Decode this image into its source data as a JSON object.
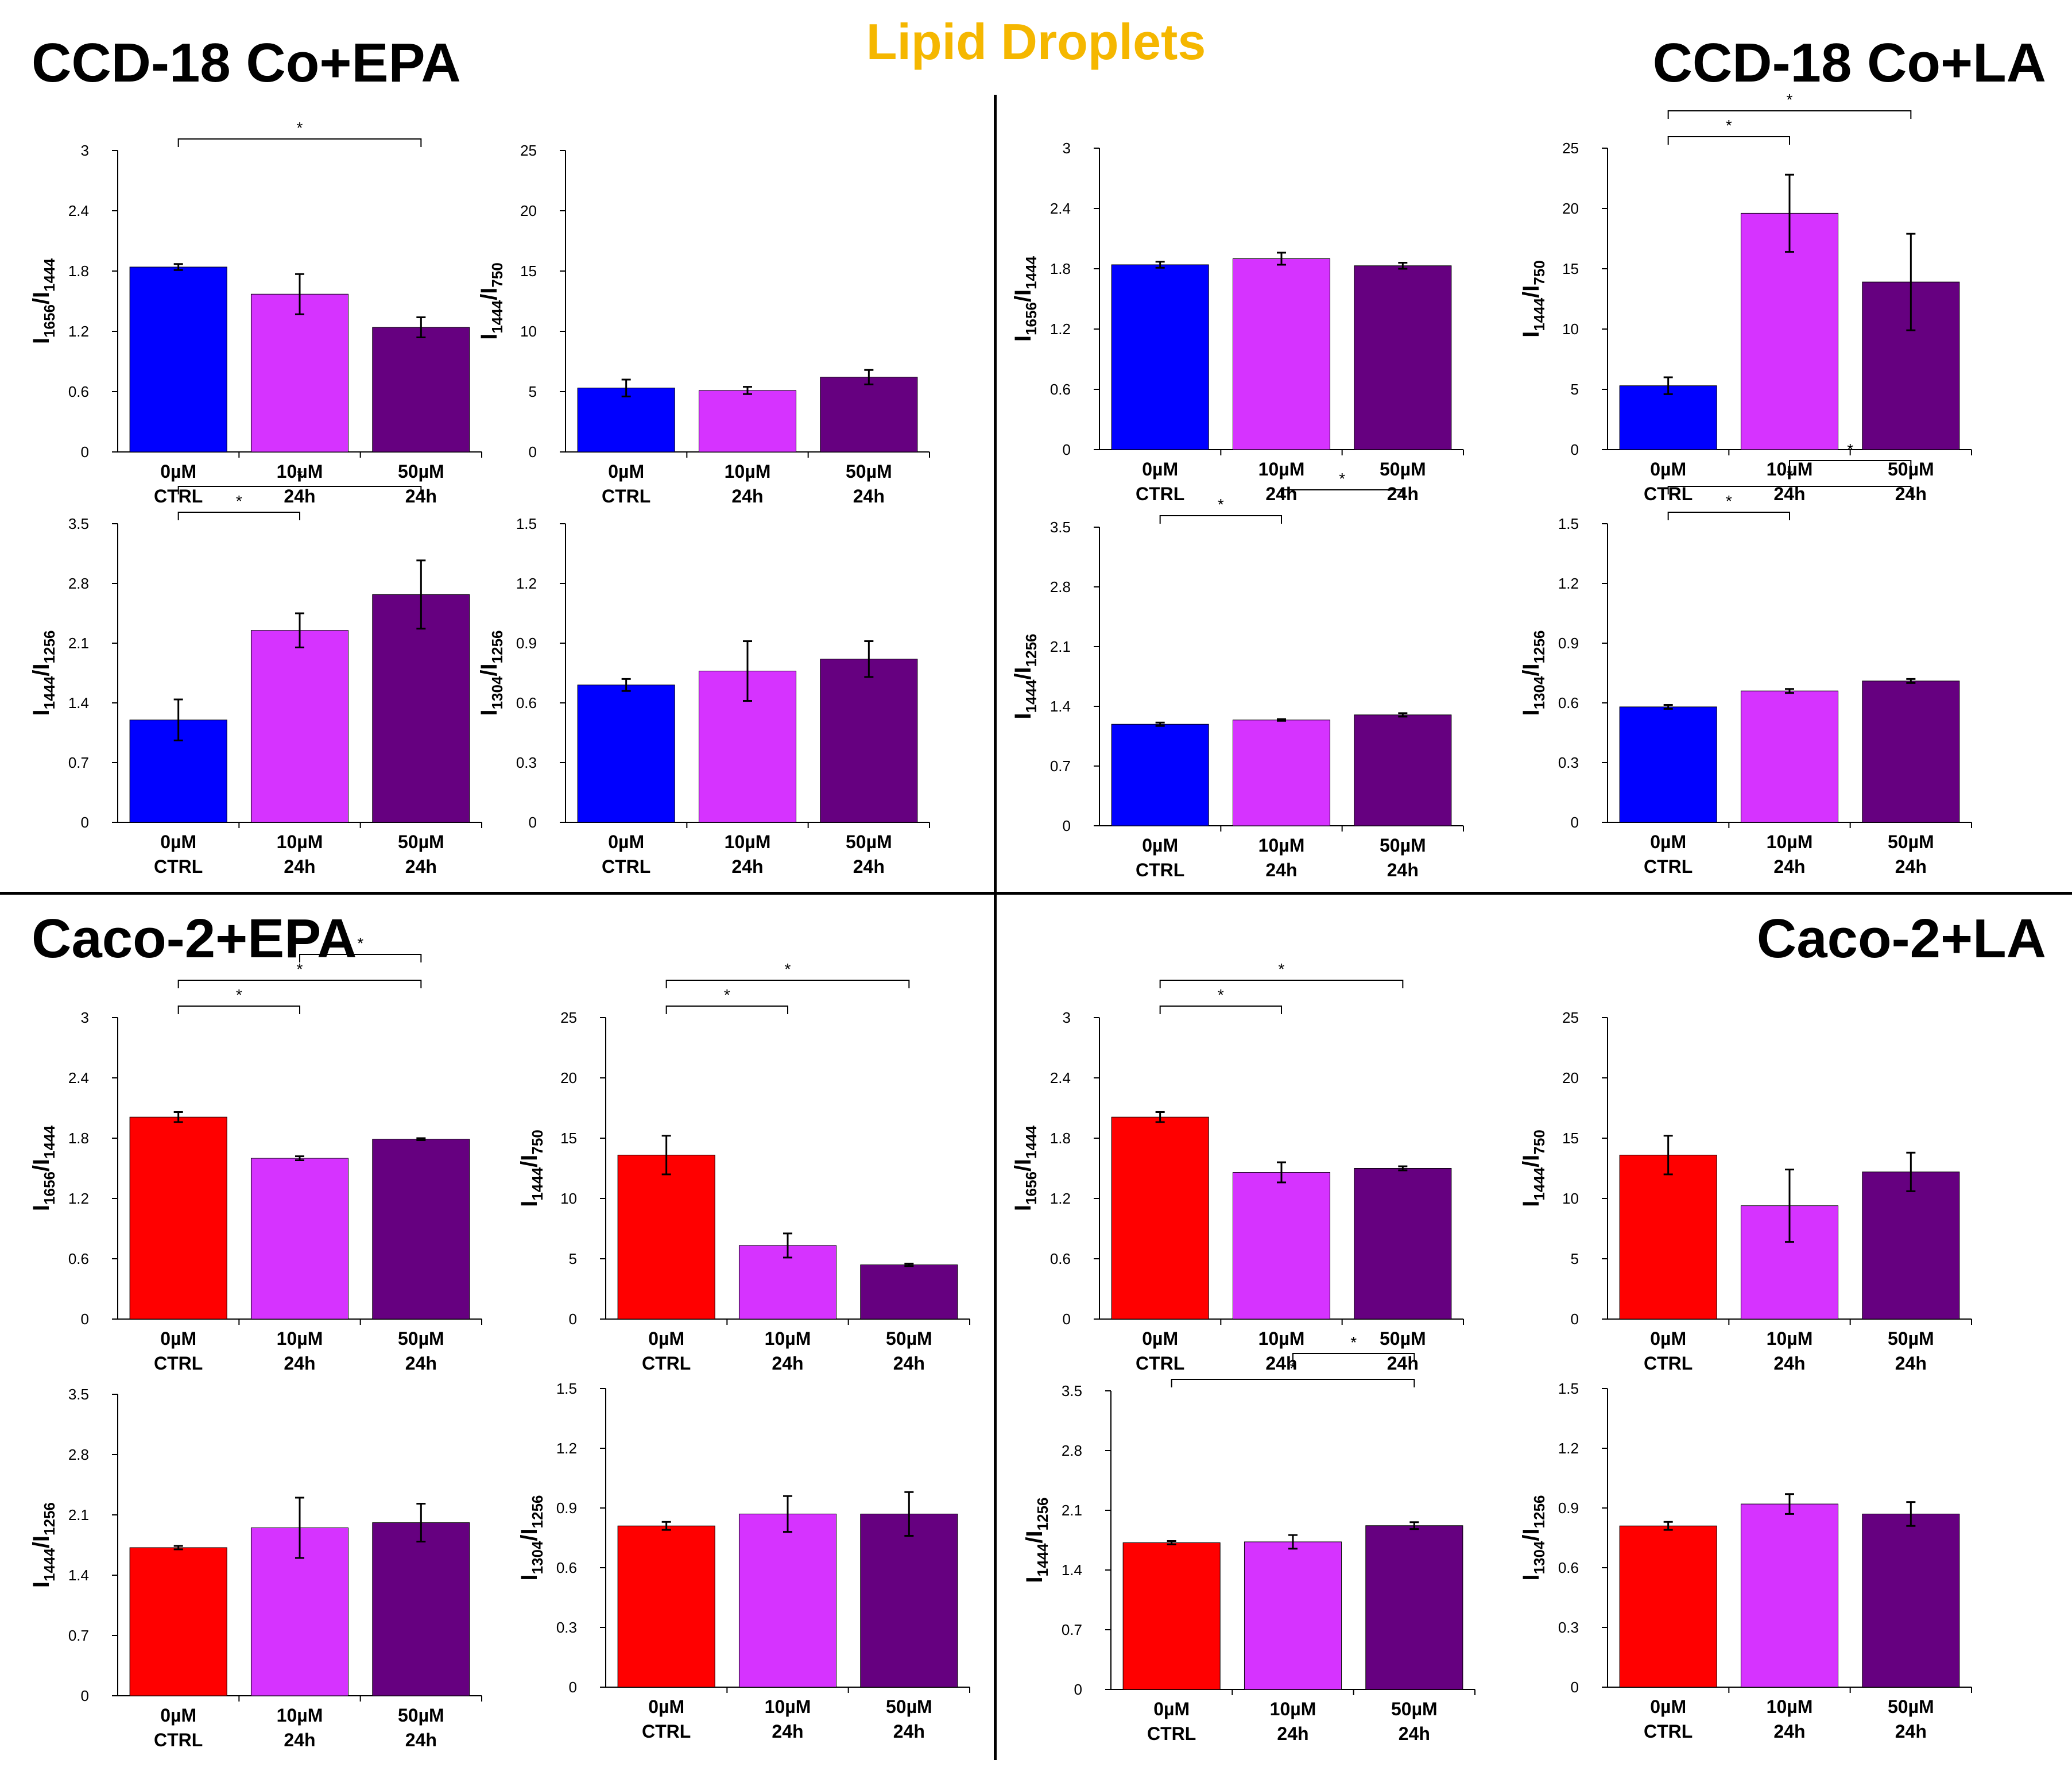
{
  "title": "Lipid Droplets",
  "panels": [
    {
      "title": "CCD-18 Co+EPA"
    },
    {
      "title": "CCD-18 Co+LA"
    },
    {
      "title": "Caco-2+EPA"
    },
    {
      "title": "Caco-2+LA"
    }
  ],
  "colors": {
    "ccd_ctrl": "#0000ff",
    "caco_ctrl": "#ff0000",
    "dose10": "#d633ff",
    "dose50": "#660080",
    "title": "#f5b700"
  },
  "chart_data": [
    {
      "id": "ccd-epa-1656-1444",
      "panel": 0,
      "type": "bar",
      "ylabel": {
        "main": "I",
        "sub1": "1656",
        "mid": "/I",
        "sub2": "1444"
      },
      "ylim": [
        0,
        3
      ],
      "yticks": [
        "0",
        "0.6",
        "1.2",
        "1.8",
        "2.4",
        "3"
      ],
      "categories": [
        [
          "0µM",
          "CTRL"
        ],
        [
          "10µM",
          "24h"
        ],
        [
          "50µM",
          "24h"
        ]
      ],
      "values": [
        1.84,
        1.57,
        1.24
      ],
      "errors": [
        0.03,
        0.2,
        0.1
      ],
      "sig": [
        {
          "from": 0,
          "to": 2,
          "label": "*"
        }
      ]
    },
    {
      "id": "ccd-epa-1444-750",
      "panel": 0,
      "type": "bar",
      "ylabel": {
        "main": "I",
        "sub1": "1444",
        "mid": "/I",
        "sub2": "750"
      },
      "ylim": [
        0,
        25
      ],
      "yticks": [
        "0",
        "5",
        "10",
        "15",
        "20",
        "25"
      ],
      "categories": [
        [
          "0µM",
          "CTRL"
        ],
        [
          "10µM",
          "24h"
        ],
        [
          "50µM",
          "24h"
        ]
      ],
      "values": [
        5.3,
        5.1,
        6.2
      ],
      "errors": [
        0.7,
        0.3,
        0.6
      ],
      "sig": []
    },
    {
      "id": "ccd-epa-1444-1256",
      "panel": 0,
      "type": "bar",
      "ylabel": {
        "main": "I",
        "sub1": "1444",
        "mid": "/I",
        "sub2": "1256"
      },
      "ylim": [
        0,
        3.5
      ],
      "yticks": [
        "0",
        "0.7",
        "1.4",
        "2.1",
        "2.8",
        "3.5"
      ],
      "categories": [
        [
          "0µM",
          "CTRL"
        ],
        [
          "10µM",
          "24h"
        ],
        [
          "50µM",
          "24h"
        ]
      ],
      "values": [
        1.2,
        2.25,
        2.67
      ],
      "errors": [
        0.24,
        0.2,
        0.4
      ],
      "sig": [
        {
          "from": 0,
          "to": 1,
          "label": "*"
        },
        {
          "from": 0,
          "to": 2,
          "label": "*"
        }
      ]
    },
    {
      "id": "ccd-epa-1304-1256",
      "panel": 0,
      "type": "bar",
      "ylabel": {
        "main": "I",
        "sub1": "1304",
        "mid": "/I",
        "sub2": "1256"
      },
      "ylim": [
        0,
        1.5
      ],
      "yticks": [
        "0",
        "0.3",
        "0.6",
        "0.9",
        "1.2",
        "1.5"
      ],
      "categories": [
        [
          "0µM",
          "CTRL"
        ],
        [
          "10µM",
          "24h"
        ],
        [
          "50µM",
          "24h"
        ]
      ],
      "values": [
        0.69,
        0.76,
        0.82
      ],
      "errors": [
        0.03,
        0.15,
        0.09
      ],
      "sig": []
    },
    {
      "id": "ccd-la-1656-1444",
      "panel": 1,
      "type": "bar",
      "ylabel": {
        "main": "I",
        "sub1": "1656",
        "mid": "/I",
        "sub2": "1444"
      },
      "ylim": [
        0,
        3
      ],
      "yticks": [
        "0",
        "0.6",
        "1.2",
        "1.8",
        "2.4",
        "3"
      ],
      "categories": [
        [
          "0µM",
          "CTRL"
        ],
        [
          "10µM",
          "24h"
        ],
        [
          "50µM",
          "24h"
        ]
      ],
      "values": [
        1.84,
        1.9,
        1.83
      ],
      "errors": [
        0.03,
        0.06,
        0.03
      ],
      "sig": []
    },
    {
      "id": "ccd-la-1444-750",
      "panel": 1,
      "type": "bar",
      "ylabel": {
        "main": "I",
        "sub1": "1444",
        "mid": "/I",
        "sub2": "750"
      },
      "ylim": [
        0,
        25
      ],
      "yticks": [
        "0",
        "5",
        "10",
        "15",
        "20",
        "25"
      ],
      "categories": [
        [
          "0µM",
          "CTRL"
        ],
        [
          "10µM",
          "24h"
        ],
        [
          "50µM",
          "24h"
        ]
      ],
      "values": [
        5.3,
        19.6,
        13.9
      ],
      "errors": [
        0.7,
        3.2,
        4.0
      ],
      "sig": [
        {
          "from": 0,
          "to": 1,
          "label": "*"
        },
        {
          "from": 0,
          "to": 2,
          "label": "*"
        }
      ]
    },
    {
      "id": "ccd-la-1444-1256",
      "panel": 1,
      "type": "bar",
      "ylabel": {
        "main": "I",
        "sub1": "1444",
        "mid": "/I",
        "sub2": "1256"
      },
      "ylim": [
        0,
        3.5
      ],
      "yticks": [
        "0",
        "0.7",
        "1.4",
        "2.1",
        "2.8",
        "3.5"
      ],
      "categories": [
        [
          "0µM",
          "CTRL"
        ],
        [
          "10µM",
          "24h"
        ],
        [
          "50µM",
          "24h"
        ]
      ],
      "values": [
        1.19,
        1.24,
        1.3
      ],
      "errors": [
        0.02,
        0.01,
        0.02
      ],
      "sig": [
        {
          "from": 0,
          "to": 1,
          "label": "*"
        },
        {
          "from": 1,
          "to": 2,
          "label": "*"
        }
      ]
    },
    {
      "id": "ccd-la-1304-1256",
      "panel": 1,
      "type": "bar",
      "ylabel": {
        "main": "I",
        "sub1": "1304",
        "mid": "/I",
        "sub2": "1256"
      },
      "ylim": [
        0,
        1.5
      ],
      "yticks": [
        "0",
        "0.3",
        "0.6",
        "0.9",
        "1.2",
        "1.5"
      ],
      "categories": [
        [
          "0µM",
          "CTRL"
        ],
        [
          "10µM",
          "24h"
        ],
        [
          "50µM",
          "24h"
        ]
      ],
      "values": [
        0.58,
        0.66,
        0.71
      ],
      "errors": [
        0.01,
        0.01,
        0.01
      ],
      "sig": [
        {
          "from": 0,
          "to": 1,
          "label": "*"
        },
        {
          "from": 0,
          "to": 2,
          "label": "*"
        },
        {
          "from": 1,
          "to": 2,
          "label": "*"
        }
      ]
    },
    {
      "id": "caco-epa-1656-1444",
      "panel": 2,
      "type": "bar",
      "ylabel": {
        "main": "I",
        "sub1": "1656",
        "mid": "/I",
        "sub2": "1444"
      },
      "ylim": [
        0,
        3
      ],
      "yticks": [
        "0",
        "0.6",
        "1.2",
        "1.8",
        "2.4",
        "3"
      ],
      "categories": [
        [
          "0µM",
          "CTRL"
        ],
        [
          "10µM",
          "24h"
        ],
        [
          "50µM",
          "24h"
        ]
      ],
      "values": [
        2.01,
        1.6,
        1.79
      ],
      "errors": [
        0.05,
        0.02,
        0.01
      ],
      "sig": [
        {
          "from": 0,
          "to": 1,
          "label": "*"
        },
        {
          "from": 0,
          "to": 2,
          "label": "*"
        },
        {
          "from": 1,
          "to": 2,
          "label": "*"
        }
      ]
    },
    {
      "id": "caco-epa-1444-750",
      "panel": 2,
      "type": "bar",
      "ylabel": {
        "main": "I",
        "sub1": "1444",
        "mid": "/I",
        "sub2": "750"
      },
      "ylim": [
        0,
        25
      ],
      "yticks": [
        "0",
        "5",
        "10",
        "15",
        "20",
        "25"
      ],
      "categories": [
        [
          "0µM",
          "CTRL"
        ],
        [
          "10µM",
          "24h"
        ],
        [
          "50µM",
          "24h"
        ]
      ],
      "values": [
        13.6,
        6.1,
        4.5
      ],
      "errors": [
        1.6,
        1.0,
        0.1
      ],
      "sig": [
        {
          "from": 0,
          "to": 1,
          "label": "*"
        },
        {
          "from": 0,
          "to": 2,
          "label": "*"
        }
      ]
    },
    {
      "id": "caco-epa-1444-1256",
      "panel": 2,
      "type": "bar",
      "ylabel": {
        "main": "I",
        "sub1": "1444",
        "mid": "/I",
        "sub2": "1256"
      },
      "ylim": [
        0,
        3.5
      ],
      "yticks": [
        "0",
        "0.7",
        "1.4",
        "2.1",
        "2.8",
        "3.5"
      ],
      "categories": [
        [
          "0µM",
          "CTRL"
        ],
        [
          "10µM",
          "24h"
        ],
        [
          "50µM",
          "24h"
        ]
      ],
      "values": [
        1.72,
        1.95,
        2.01
      ],
      "errors": [
        0.02,
        0.35,
        0.22
      ],
      "sig": []
    },
    {
      "id": "caco-epa-1304-1256",
      "panel": 2,
      "type": "bar",
      "ylabel": {
        "main": "I",
        "sub1": "1304",
        "mid": "/I",
        "sub2": "1256"
      },
      "ylim": [
        0,
        1.5
      ],
      "yticks": [
        "0",
        "0.3",
        "0.6",
        "0.9",
        "1.2",
        "1.5"
      ],
      "categories": [
        [
          "0µM",
          "CTRL"
        ],
        [
          "10µM",
          "24h"
        ],
        [
          "50µM",
          "24h"
        ]
      ],
      "values": [
        0.81,
        0.87,
        0.87
      ],
      "errors": [
        0.02,
        0.09,
        0.11
      ],
      "sig": []
    },
    {
      "id": "caco-la-1656-1444",
      "panel": 3,
      "type": "bar",
      "ylabel": {
        "main": "I",
        "sub1": "1656",
        "mid": "/I",
        "sub2": "1444"
      },
      "ylim": [
        0,
        3
      ],
      "yticks": [
        "0",
        "0.6",
        "1.2",
        "1.8",
        "2.4",
        "3"
      ],
      "categories": [
        [
          "0µM",
          "CTRL"
        ],
        [
          "10µM",
          "24h"
        ],
        [
          "50µM",
          "24h"
        ]
      ],
      "values": [
        2.01,
        1.46,
        1.5
      ],
      "errors": [
        0.05,
        0.1,
        0.02
      ],
      "sig": [
        {
          "from": 0,
          "to": 1,
          "label": "*"
        },
        {
          "from": 0,
          "to": 2,
          "label": "*"
        }
      ]
    },
    {
      "id": "caco-la-1444-750",
      "panel": 3,
      "type": "bar",
      "ylabel": {
        "main": "I",
        "sub1": "1444",
        "mid": "/I",
        "sub2": "750"
      },
      "ylim": [
        0,
        25
      ],
      "yticks": [
        "0",
        "5",
        "10",
        "15",
        "20",
        "25"
      ],
      "categories": [
        [
          "0µM",
          "CTRL"
        ],
        [
          "10µM",
          "24h"
        ],
        [
          "50µM",
          "24h"
        ]
      ],
      "values": [
        13.6,
        9.4,
        12.2
      ],
      "errors": [
        1.6,
        3.0,
        1.6
      ],
      "sig": []
    },
    {
      "id": "caco-la-1444-1256",
      "panel": 3,
      "type": "bar",
      "ylabel": {
        "main": "I",
        "sub1": "1444",
        "mid": "/I",
        "sub2": "1256"
      },
      "ylim": [
        0,
        3.5
      ],
      "yticks": [
        "0",
        "0.7",
        "1.4",
        "2.1",
        "2.8",
        "3.5"
      ],
      "categories": [
        [
          "0µM",
          "CTRL"
        ],
        [
          "10µM",
          "24h"
        ],
        [
          "50µM",
          "24h"
        ]
      ],
      "values": [
        1.72,
        1.73,
        1.92
      ],
      "errors": [
        0.02,
        0.08,
        0.04
      ],
      "sig": [
        {
          "from": 0,
          "to": 2,
          "label": "*"
        },
        {
          "from": 1,
          "to": 2,
          "label": "*"
        }
      ]
    },
    {
      "id": "caco-la-1304-1256",
      "panel": 3,
      "type": "bar",
      "ylabel": {
        "main": "I",
        "sub1": "1304",
        "mid": "/I",
        "sub2": "1256"
      },
      "ylim": [
        0,
        1.5
      ],
      "yticks": [
        "0",
        "0.3",
        "0.6",
        "0.9",
        "1.2",
        "1.5"
      ],
      "categories": [
        [
          "0µM",
          "CTRL"
        ],
        [
          "10µM",
          "24h"
        ],
        [
          "50µM",
          "24h"
        ]
      ],
      "values": [
        0.81,
        0.92,
        0.87
      ],
      "errors": [
        0.02,
        0.05,
        0.06
      ],
      "sig": []
    }
  ]
}
